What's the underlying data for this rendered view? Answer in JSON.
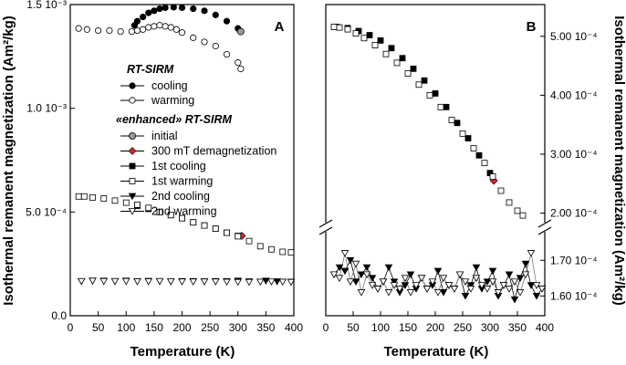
{
  "figure": {
    "y_axis_left_label": "Isothermal remanent magnetization (Am²/kg)",
    "y_axis_right_label": "Isothermal remanent magnetization (Am²/kg)",
    "x_axis_label": "Temperature (K)",
    "legend": {
      "group1_title": "RT-SIRM",
      "group1_items": [
        "cooling",
        "warming"
      ],
      "group2_title": "«enhanced» RT-SIRM",
      "group2_items": [
        "initial",
        "300 mT demagnetization",
        "1st cooling",
        "1st warming",
        "2nd cooling",
        "2nd warming"
      ]
    },
    "colors": {
      "black": "#000000",
      "gray": "#9a9a9a",
      "red": "#d8232a",
      "white": "#ffffff"
    }
  },
  "chart_data": [
    {
      "type": "scatter",
      "panel_label": "A",
      "xlabel": "Temperature (K)",
      "ylabel": "Isothermal remanent magnetization (Am²/kg)",
      "xlim": [
        0,
        400
      ],
      "ylim": [
        0,
        0.0015
      ],
      "x_ticks": [
        0,
        50,
        100,
        150,
        200,
        250,
        300,
        350,
        400
      ],
      "x_tick_labels": [
        "0",
        "50",
        "100",
        "150",
        "200",
        "250",
        "300",
        "350",
        "400"
      ],
      "y_ticks": [
        0,
        0.0005,
        0.001,
        0.0015
      ],
      "y_tick_labels": [
        "0.0",
        "5.0 10⁻⁴",
        "1.0 10⁻³",
        "1.5 10⁻³"
      ],
      "series": [
        {
          "name": "RT-SIRM cooling",
          "marker": "circle-filled",
          "x": [
            300,
            280,
            260,
            240,
            220,
            200,
            185,
            170,
            160,
            150,
            140,
            130,
            120,
            115
          ],
          "y": [
            0.001385,
            0.00142,
            0.00145,
            0.00147,
            0.00148,
            0.001485,
            0.001487,
            0.001485,
            0.00148,
            0.00147,
            0.00146,
            0.00144,
            0.00142,
            0.0014
          ]
        },
        {
          "name": "RT-SIRM warming",
          "marker": "circle-open",
          "x": [
            15,
            30,
            50,
            70,
            90,
            110,
            120,
            130,
            140,
            150,
            160,
            170,
            180,
            190,
            200,
            220,
            240,
            260,
            280,
            300,
            305
          ],
          "y": [
            0.001385,
            0.00138,
            0.001375,
            0.001375,
            0.00137,
            0.00137,
            0.001375,
            0.00138,
            0.00139,
            0.001395,
            0.0014,
            0.001395,
            0.00139,
            0.00138,
            0.001365,
            0.00134,
            0.00132,
            0.0013,
            0.00126,
            0.00122,
            0.00119
          ]
        },
        {
          "name": "initial",
          "marker": "circle-gray",
          "x": [
            305
          ],
          "y": [
            0.00137
          ]
        },
        {
          "name": "300 mT demagnetization",
          "marker": "diamond-red",
          "x": [
            307
          ],
          "y": [
            0.000385
          ]
        },
        {
          "name": "1st cooling",
          "marker": "square-filled",
          "x": [
            300,
            280,
            260,
            240,
            220,
            200,
            180,
            160,
            140,
            120
          ],
          "y": [
            0.000385,
            0.0004,
            0.00042,
            0.000435,
            0.00045,
            0.00047,
            0.000485,
            0.0005,
            0.000515,
            0.00053
          ]
        },
        {
          "name": "1st warming",
          "marker": "square-open",
          "x": [
            15,
            25,
            40,
            60,
            80,
            100,
            120,
            140,
            160,
            180,
            200,
            220,
            240,
            260,
            280,
            300,
            320,
            340,
            360,
            380,
            395
          ],
          "y": [
            0.000575,
            0.000575,
            0.00057,
            0.000565,
            0.000555,
            0.000545,
            0.000535,
            0.00052,
            0.0005,
            0.000485,
            0.00047,
            0.00045,
            0.000435,
            0.00042,
            0.0004,
            0.000383,
            0.00036,
            0.000335,
            0.00032,
            0.000308,
            0.000305
          ]
        },
        {
          "name": "2nd cooling",
          "marker": "tri-down-filled",
          "x": [
            395,
            370,
            350,
            320,
            300,
            280,
            260,
            240,
            220,
            200,
            180,
            160,
            140,
            120,
            100,
            80,
            60,
            40,
            20
          ],
          "y": [
            0.000163,
            0.000165,
            0.000168,
            0.000165,
            0.000168,
            0.000166,
            0.000166,
            0.000165,
            0.000166,
            0.000166,
            0.000165,
            0.000166,
            0.000167,
            0.000166,
            0.000168,
            0.000166,
            0.000168,
            0.000168,
            0.000166
          ]
        },
        {
          "name": "2nd warming",
          "marker": "tri-down-open",
          "x": [
            20,
            40,
            60,
            80,
            100,
            120,
            140,
            160,
            180,
            200,
            220,
            240,
            260,
            280,
            300,
            320,
            340,
            360,
            380,
            395
          ],
          "y": [
            0.000166,
            0.000168,
            0.000166,
            0.000166,
            0.000166,
            0.000165,
            0.000165,
            0.000166,
            0.000165,
            0.000164,
            0.000164,
            0.000164,
            0.000164,
            0.000163,
            0.000162,
            0.000162,
            0.000163,
            0.000164,
            0.000163,
            0.000162
          ]
        }
      ]
    },
    {
      "type": "scatter",
      "panel_label": "B",
      "xlabel": "Temperature (K)",
      "ylabel": "Isothermal remanent magnetization (Am²/kg)",
      "xlim": [
        0,
        400
      ],
      "axis_break": true,
      "upper_ylim": [
        0.00019,
        0.00054
      ],
      "lower_ylim": [
        0.000156,
        0.000178
      ],
      "x_ticks": [
        0,
        50,
        100,
        150,
        200,
        250,
        300,
        350,
        400
      ],
      "x_tick_labels": [
        "0",
        "50",
        "100",
        "150",
        "200",
        "250",
        "300",
        "350",
        "400"
      ],
      "upper_y_ticks": [
        0.0002,
        0.0003,
        0.0004,
        0.0005
      ],
      "upper_y_tick_labels": [
        "2.00 10⁻⁴",
        "3.00 10⁻⁴",
        "4.00 10⁻⁴",
        "5.00 10⁻⁴"
      ],
      "lower_y_ticks": [
        0.00016,
        0.00017
      ],
      "lower_y_tick_labels": [
        "1.60 10⁻⁴",
        "1.70 10⁻⁴"
      ],
      "series": [
        {
          "name": "300 mT demagnetization",
          "marker": "diamond-red",
          "x": [
            307
          ],
          "y": [
            0.000255
          ]
        },
        {
          "name": "1st cooling",
          "marker": "square-filled",
          "x": [
            300,
            280,
            260,
            240,
            220,
            200,
            180,
            160,
            140,
            120,
            100,
            80,
            60,
            40,
            20
          ],
          "y": [
            0.000268,
            0.000298,
            0.000327,
            0.000353,
            0.00038,
            0.000403,
            0.000425,
            0.000445,
            0.000463,
            0.00048,
            0.000493,
            0.000502,
            0.000509,
            0.000514,
            0.000516
          ]
        },
        {
          "name": "1st warming",
          "marker": "square-open",
          "x": [
            15,
            25,
            40,
            55,
            70,
            90,
            110,
            130,
            150,
            170,
            190,
            210,
            230,
            250,
            270,
            290,
            305,
            320,
            335,
            350,
            360
          ],
          "y": [
            0.000516,
            0.000515,
            0.000512,
            0.000505,
            0.000497,
            0.000485,
            0.00047,
            0.000455,
            0.000437,
            0.000418,
            0.0004,
            0.00038,
            0.000358,
            0.000335,
            0.00031,
            0.000285,
            0.000262,
            0.000238,
            0.000218,
            0.000204,
            0.000196
          ]
        },
        {
          "name": "2nd cooling",
          "marker": "tri-down-filled",
          "x": [
            395,
            385,
            375,
            365,
            355,
            345,
            335,
            325,
            315,
            305,
            295,
            285,
            275,
            265,
            255,
            245,
            235,
            225,
            215,
            205,
            195,
            185,
            175,
            165,
            155,
            145,
            135,
            125,
            115,
            105,
            95,
            85,
            75,
            65,
            55,
            45,
            35,
            25,
            15
          ],
          "y": [
            0.000162,
            0.00016,
            0.000163,
            0.000169,
            0.000165,
            0.000159,
            0.000166,
            0.000163,
            0.00016,
            0.000167,
            0.000164,
            0.000162,
            0.000168,
            0.000163,
            0.00016,
            0.000166,
            0.000162,
            0.000163,
            0.000161,
            0.000167,
            0.000163,
            0.000162,
            0.000165,
            0.000162,
            0.000166,
            0.000163,
            0.000161,
            0.000164,
            0.000168,
            0.000164,
            0.000162,
            0.000165,
            0.000168,
            0.000166,
            0.000164,
            0.00017,
            0.000167,
            0.000168,
            0.000166
          ]
        },
        {
          "name": "2nd warming",
          "marker": "tri-down-open",
          "x": [
            15,
            25,
            35,
            45,
            55,
            65,
            75,
            85,
            95,
            105,
            115,
            125,
            135,
            145,
            155,
            165,
            175,
            185,
            195,
            205,
            215,
            225,
            235,
            245,
            255,
            265,
            275,
            285,
            295,
            305,
            315,
            325,
            335,
            345,
            355,
            365,
            375,
            385,
            395
          ],
          "y": [
            0.000166,
            0.000165,
            0.000172,
            0.000164,
            0.000169,
            0.000161,
            0.000166,
            0.000163,
            0.000162,
            0.000164,
            0.000161,
            0.000163,
            0.000162,
            0.000165,
            0.000161,
            0.000163,
            0.000165,
            0.000162,
            0.000164,
            0.000161,
            0.000165,
            0.000163,
            0.000162,
            0.000166,
            0.000164,
            0.000162,
            0.000165,
            0.000163,
            0.000162,
            0.000164,
            0.000161,
            0.000163,
            0.000162,
            0.000164,
            0.000161,
            0.000166,
            0.000172,
            0.000163,
            0.000162
          ]
        }
      ]
    }
  ]
}
